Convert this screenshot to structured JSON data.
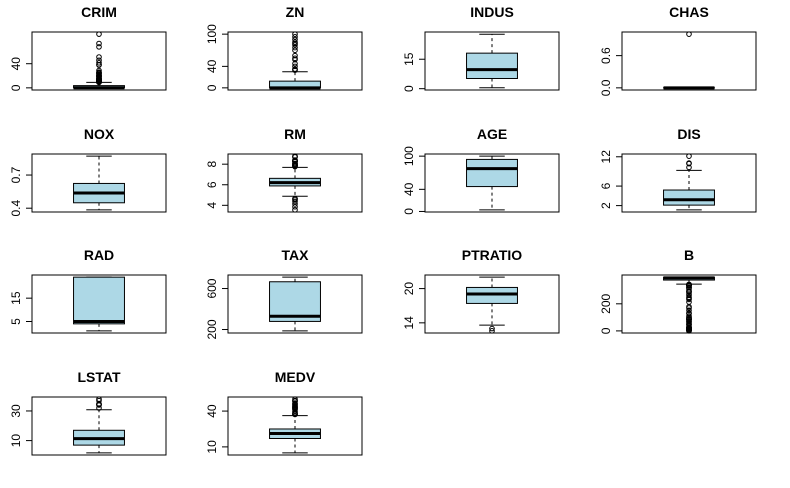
{
  "chart_data": [
    {
      "type": "box",
      "title": "CRIM",
      "ylim": [
        -3.56,
        92.54
      ],
      "yticks": [
        0,
        40
      ],
      "whislo": 0.006,
      "q1": 0.082,
      "median": 0.257,
      "q3": 3.68,
      "whishi": 8.98,
      "outliers": [
        9.2,
        9.3,
        9.7,
        10.2,
        10.8,
        11.1,
        11.6,
        12.0,
        12.3,
        13.1,
        13.5,
        14.1,
        14.3,
        15.0,
        15.2,
        15.9,
        16.8,
        18.5,
        18.8,
        19.6,
        20.1,
        20.7,
        22.0,
        23.6,
        24.4,
        25.0,
        25.9,
        28.7,
        37.7,
        38.4,
        41.5,
        45.7,
        51.1,
        67.9,
        73.5,
        88.98
      ]
    },
    {
      "type": "box",
      "title": "ZN",
      "ylim": [
        -4,
        104
      ],
      "yticks": [
        0,
        40,
        100
      ],
      "whislo": 0,
      "q1": 0,
      "median": 0,
      "q3": 12.5,
      "whishi": 30,
      "outliers": [
        33,
        34,
        35,
        40,
        45,
        52.5,
        55,
        60,
        70,
        75,
        80,
        82.5,
        85,
        90,
        95,
        100
      ]
    },
    {
      "type": "box",
      "title": "INDUS",
      "ylim": [
        -0.67,
        28.87
      ],
      "yticks": [
        0,
        15
      ],
      "whislo": 0.46,
      "q1": 5.19,
      "median": 9.69,
      "q3": 18.1,
      "whishi": 27.74,
      "outliers": []
    },
    {
      "type": "box",
      "title": "CHAS",
      "ylim": [
        -0.04,
        1.04
      ],
      "yticks": [
        {
          "value": 0,
          "label": "0.0"
        },
        {
          "value": 0.6,
          "label": "0.6"
        }
      ],
      "whislo": 0,
      "q1": 0,
      "median": 0,
      "q3": 0,
      "whishi": 0,
      "outliers": [
        1
      ]
    },
    {
      "type": "box",
      "title": "NOX",
      "ylim": [
        0.3656,
        0.8904
      ],
      "yticks": [
        0.4,
        0.7
      ],
      "whislo": 0.385,
      "q1": 0.449,
      "median": 0.538,
      "q3": 0.624,
      "whishi": 0.871,
      "outliers": []
    },
    {
      "type": "box",
      "title": "RM",
      "ylim": [
        3.35,
        8.99
      ],
      "yticks": [
        4,
        6,
        8
      ],
      "whislo": 4.88,
      "q1": 5.886,
      "median": 6.208,
      "q3": 6.623,
      "whishi": 7.691,
      "outliers": [
        3.561,
        3.863,
        4.138,
        4.368,
        4.519,
        4.628,
        4.652,
        7.765,
        7.82,
        7.853,
        7.875,
        7.923,
        7.929,
        8.034,
        8.04,
        8.069,
        8.247,
        8.259,
        8.266,
        8.297,
        8.337,
        8.375,
        8.398,
        8.704,
        8.725,
        8.78
      ]
    },
    {
      "type": "box",
      "title": "AGE",
      "ylim": [
        -0.98,
        103.88
      ],
      "yticks": [
        0,
        40,
        100
      ],
      "whislo": 2.9,
      "q1": 45,
      "median": 77.5,
      "q3": 94.1,
      "whishi": 100,
      "outliers": []
    },
    {
      "type": "box",
      "title": "DIS",
      "ylim": [
        0.69,
        12.57
      ],
      "yticks": [
        2,
        6,
        12
      ],
      "whislo": 1.13,
      "q1": 2.1,
      "median": 3.21,
      "q3": 5.19,
      "whishi": 9.22,
      "outliers": [
        9.82,
        10.59,
        10.71,
        12.13
      ]
    },
    {
      "type": "box",
      "title": "RAD",
      "ylim": [
        0.08,
        24.92
      ],
      "yticks": [
        5,
        15
      ],
      "whislo": 1,
      "q1": 4,
      "median": 5,
      "q3": 24,
      "whishi": 24,
      "outliers": []
    },
    {
      "type": "box",
      "title": "TAX",
      "ylim": [
        166,
        732
      ],
      "yticks": [
        200,
        600
      ],
      "whislo": 187,
      "q1": 279,
      "median": 330,
      "q3": 666,
      "whishi": 711,
      "outliers": []
    },
    {
      "type": "box",
      "title": "PTRATIO",
      "ylim": [
        12.22,
        22.38
      ],
      "yticks": [
        14,
        20
      ],
      "whislo": 13.6,
      "q1": 17.4,
      "median": 19.05,
      "q3": 20.2,
      "whishi": 22,
      "outliers": [
        12.6,
        13.0
      ]
    },
    {
      "type": "box",
      "title": "B",
      "ylim": [
        -15.5,
        412.7
      ],
      "yticks": [
        0,
        200
      ],
      "whislo": 344.91,
      "q1": 375.38,
      "median": 391.44,
      "q3": 396.22,
      "whishi": 396.9,
      "outliers": [
        0.32,
        2.52,
        2.6,
        3.5,
        3.65,
        6.68,
        7.68,
        9.32,
        10.48,
        16.45,
        18.82,
        21.57,
        22.01,
        24.65,
        27.25,
        28.79,
        43.06,
        48.45,
        50.92,
        60.72,
        68.95,
        70.8,
        81.33,
        83.45,
        88.01,
        88.27,
        88.63,
        97.95,
        100.19,
        109.85,
        127.36,
        131.42,
        151.72,
        169.27,
        178.6,
        212.87,
        232.6,
        240.16,
        248.31,
        261.95,
        272.21,
        285.83,
        288.99,
        291.55,
        302.76,
        318.01,
        318.43,
        320.46,
        331.29,
        334.4,
        336.6,
        338.16,
        338.63,
        338.92,
        340.27,
        341.6,
        343.28
      ]
    },
    {
      "type": "box",
      "title": "LSTAT",
      "ylim": [
        0.28,
        39.42
      ],
      "yticks": [
        10,
        30
      ],
      "whislo": 1.73,
      "q1": 6.95,
      "median": 11.36,
      "q3": 16.96,
      "whishi": 30.81,
      "outliers": [
        31.99,
        34.02,
        34.37,
        34.41,
        34.77,
        36.98,
        37.97
      ]
    },
    {
      "type": "box",
      "title": "MEDV",
      "ylim": [
        3.2,
        51.8
      ],
      "yticks": [
        10,
        40
      ],
      "whislo": 5,
      "q1": 17.03,
      "median": 21.2,
      "q3": 25,
      "whishi": 36.2,
      "outliers": [
        37.2,
        37.3,
        37.6,
        37.9,
        38.7,
        39.8,
        41.3,
        41.7,
        42.3,
        42.8,
        43.1,
        43.5,
        44,
        44.8,
        45.4,
        46,
        46.7,
        48.3,
        48.5,
        48.8,
        50
      ]
    }
  ]
}
